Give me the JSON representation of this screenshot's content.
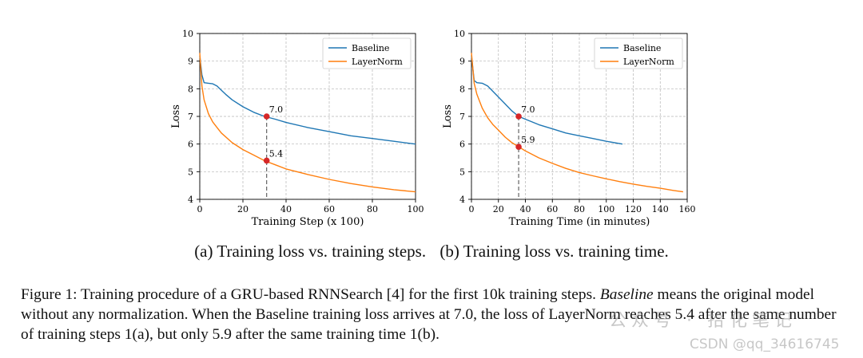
{
  "chart_data": [
    {
      "type": "line",
      "xlabel": "Training Step (x 100)",
      "ylabel": "Loss",
      "xlim": [
        0,
        100
      ],
      "ylim": [
        4,
        10
      ],
      "xticks": [
        0,
        20,
        40,
        60,
        80,
        100
      ],
      "yticks": [
        4,
        5,
        6,
        7,
        8,
        9,
        10
      ],
      "grid": true,
      "legend": "top-right",
      "series": [
        {
          "name": "Baseline",
          "color": "#1f77b4",
          "x": [
            0,
            1,
            2,
            4,
            6,
            8,
            10,
            12,
            15,
            20,
            25,
            30,
            35,
            40,
            50,
            60,
            70,
            80,
            90,
            100
          ],
          "y": [
            9.2,
            8.5,
            8.22,
            8.2,
            8.18,
            8.1,
            7.95,
            7.8,
            7.6,
            7.35,
            7.15,
            7.0,
            6.9,
            6.78,
            6.6,
            6.45,
            6.3,
            6.2,
            6.1,
            6.0
          ]
        },
        {
          "name": "LayerNorm",
          "color": "#ff7f0e",
          "x": [
            0,
            1,
            2,
            4,
            6,
            8,
            10,
            15,
            20,
            25,
            30,
            35,
            40,
            50,
            60,
            70,
            80,
            90,
            100
          ],
          "y": [
            9.3,
            8.1,
            7.6,
            7.1,
            6.8,
            6.6,
            6.4,
            6.05,
            5.8,
            5.6,
            5.4,
            5.25,
            5.1,
            4.9,
            4.72,
            4.57,
            4.45,
            4.35,
            4.27
          ]
        }
      ],
      "annotations": [
        {
          "label": "7.0",
          "x": 31,
          "y": 7.0
        },
        {
          "label": "5.4",
          "x": 31,
          "y": 5.4
        }
      ],
      "vline_x": 31
    },
    {
      "type": "line",
      "xlabel": "Training Time (in minutes)",
      "ylabel": "Loss",
      "xlim": [
        0,
        160
      ],
      "ylim": [
        4,
        10
      ],
      "xticks": [
        0,
        20,
        40,
        60,
        80,
        100,
        120,
        140,
        160
      ],
      "yticks": [
        4,
        5,
        6,
        7,
        8,
        9,
        10
      ],
      "grid": true,
      "legend": "top-right",
      "series": [
        {
          "name": "Baseline",
          "color": "#1f77b4",
          "x": [
            0,
            2,
            4,
            8,
            12,
            16,
            20,
            25,
            30,
            35,
            40,
            50,
            60,
            70,
            80,
            90,
            100,
            112
          ],
          "y": [
            9.2,
            8.3,
            8.22,
            8.2,
            8.1,
            7.9,
            7.7,
            7.45,
            7.2,
            7.0,
            6.9,
            6.7,
            6.55,
            6.4,
            6.3,
            6.2,
            6.1,
            6.0
          ]
        },
        {
          "name": "LayerNorm",
          "color": "#ff7f0e",
          "x": [
            0,
            2,
            4,
            8,
            12,
            16,
            20,
            25,
            30,
            35,
            40,
            50,
            60,
            70,
            80,
            90,
            100,
            110,
            120,
            130,
            140,
            150,
            157
          ],
          "y": [
            9.3,
            8.2,
            7.8,
            7.3,
            6.95,
            6.7,
            6.5,
            6.25,
            6.05,
            5.9,
            5.75,
            5.5,
            5.3,
            5.12,
            4.97,
            4.85,
            4.74,
            4.64,
            4.55,
            4.47,
            4.4,
            4.32,
            4.27
          ]
        }
      ],
      "annotations": [
        {
          "label": "7.0",
          "x": 35,
          "y": 7.0
        },
        {
          "label": "5.9",
          "x": 35,
          "y": 5.9
        }
      ],
      "vline_x": 35
    }
  ],
  "subcaptions": {
    "a": "(a) Training loss vs. training steps.",
    "b": "(b) Training loss vs. training time."
  },
  "caption": {
    "p1": "Figure 1:  Training procedure of a GRU-based RNNSearch [4] for the first 10k training steps. ",
    "em": "Baseline",
    "p2": " means the original model without any normalization. When the Baseline training loss arrives at 7.0, the loss of LayerNorm reaches 5.4 after the same number of training steps 1(a), but only 5.9 after the same training time 1(b)."
  },
  "watermark": {
    "line1": "公众号 · 拾化笔记",
    "line2": "CSDN @qq_34616745"
  }
}
